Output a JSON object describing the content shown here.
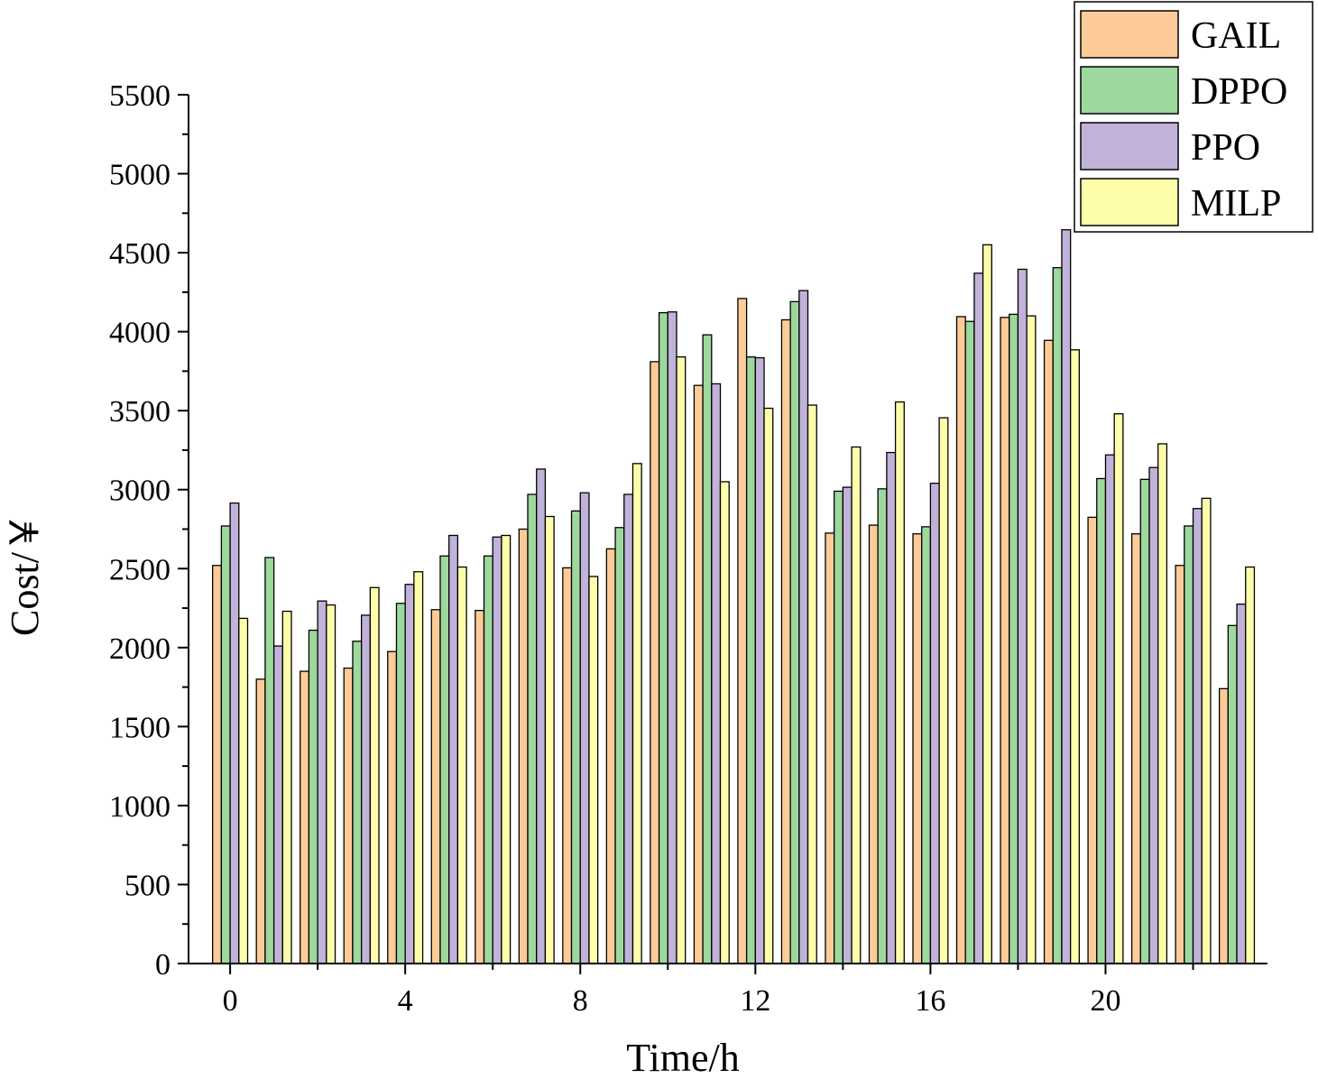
{
  "chart_data": {
    "type": "bar",
    "title": "",
    "xlabel": "Time/h",
    "ylabel": "Cost/￥",
    "x": [
      0,
      1,
      2,
      3,
      4,
      5,
      6,
      7,
      8,
      9,
      10,
      11,
      12,
      13,
      14,
      15,
      16,
      17,
      18,
      19,
      20,
      21,
      22,
      23
    ],
    "xticks": [
      0,
      4,
      8,
      12,
      16,
      20
    ],
    "xlim": [
      -0.95,
      23.7
    ],
    "ylim": [
      0,
      5500
    ],
    "yticks": [
      0,
      500,
      1000,
      1500,
      2000,
      2500,
      3000,
      3500,
      4000,
      4500,
      5000,
      5500
    ],
    "grid": false,
    "legend": "top-right",
    "series": [
      {
        "name": "GAIL",
        "color": "#FDCB98",
        "values": [
          2520,
          1800,
          1850,
          1870,
          1975,
          2240,
          2235,
          2750,
          2505,
          2625,
          3810,
          3660,
          4210,
          4075,
          2725,
          2775,
          2720,
          4095,
          4090,
          3945,
          2825,
          2720,
          2520,
          1740
        ]
      },
      {
        "name": "DPPO",
        "color": "#9DD89D",
        "values": [
          2770,
          2570,
          2110,
          2040,
          2280,
          2580,
          2580,
          2970,
          2865,
          2760,
          4120,
          3980,
          3840,
          4190,
          2990,
          3005,
          2765,
          4065,
          4110,
          4405,
          3070,
          3065,
          2770,
          2140
        ]
      },
      {
        "name": "PPO",
        "color": "#C0B2D8",
        "values": [
          2915,
          2010,
          2295,
          2205,
          2400,
          2710,
          2700,
          3130,
          2980,
          2970,
          4125,
          3670,
          3835,
          4260,
          3015,
          3235,
          3040,
          4370,
          4395,
          4645,
          3220,
          3140,
          2880,
          2275
        ]
      },
      {
        "name": "MILP",
        "color": "#FEFEAA",
        "values": [
          2185,
          2230,
          2270,
          2380,
          2480,
          2510,
          2710,
          2830,
          2450,
          3165,
          3840,
          3050,
          3515,
          3535,
          3270,
          3555,
          3455,
          4550,
          4100,
          3885,
          3480,
          3290,
          2945,
          2510
        ]
      }
    ]
  }
}
